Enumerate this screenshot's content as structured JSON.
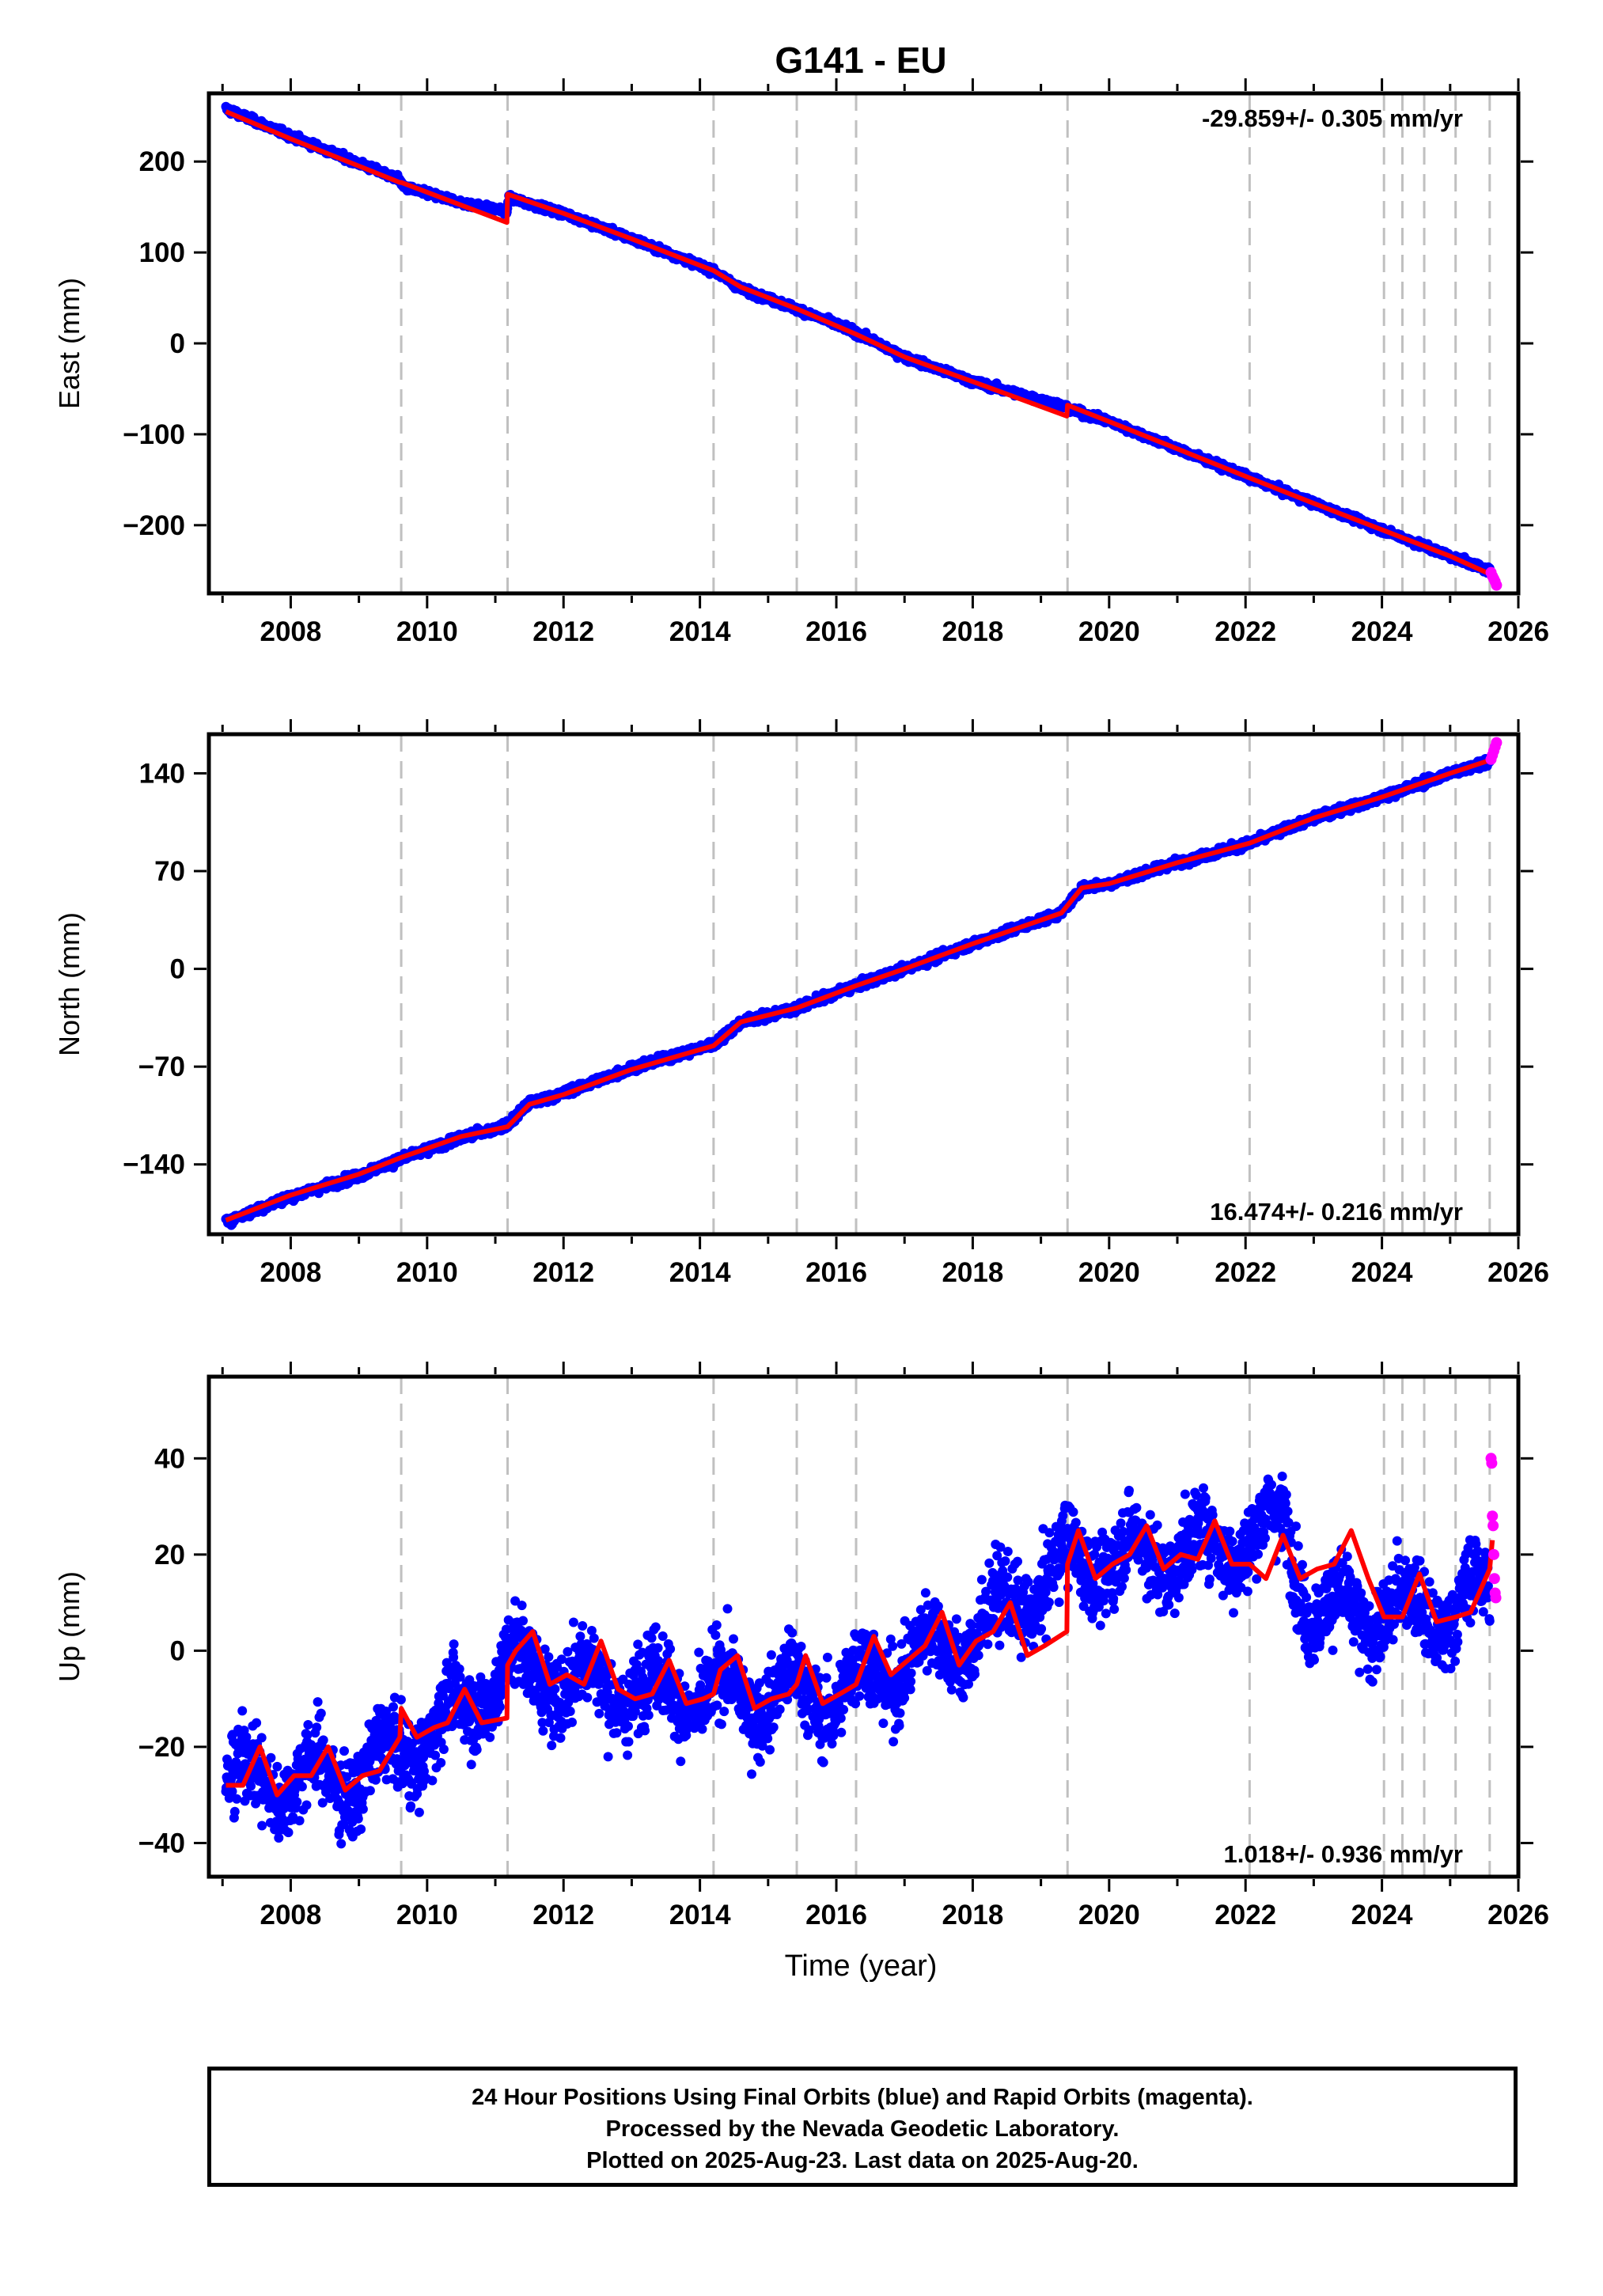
{
  "title": "G141 - EU",
  "xlabel": "Time (year)",
  "footer": {
    "line1": "24 Hour Positions Using Final Orbits (blue) and Rapid Orbits (magenta).",
    "line2": "Processed by the Nevada Geodetic Laboratory.",
    "line3": "Plotted on 2025-Aug-23. Last data on 2025-Aug-20."
  },
  "colors": {
    "final": "#0000ff",
    "rapid": "#ff00ff",
    "model": "#ff0000",
    "steps": "#c0c0c0"
  },
  "chart_data": [
    {
      "type": "scatter",
      "panel": "east",
      "ylabel": "East (mm)",
      "rate_label": "-29.859+/- 0.305 mm/yr",
      "rate_position": "top-right",
      "xlim": [
        2006.8,
        2026.0
      ],
      "ylim": [
        -275,
        275
      ],
      "yticks": [
        -200,
        -100,
        0,
        100,
        200
      ],
      "xticks": [
        2008,
        2010,
        2012,
        2014,
        2016,
        2018,
        2020,
        2022,
        2024,
        2026
      ],
      "step_lines": [
        2009.62,
        2011.18,
        2014.2,
        2015.42,
        2016.29,
        2019.39,
        2022.06,
        2024.03,
        2024.3,
        2024.62,
        2025.08,
        2025.58
      ],
      "model": {
        "x": [
          2007.05,
          2008.0,
          2009.0,
          2009.6,
          2009.62,
          2011.17,
          2011.18,
          2012.0,
          2013.0,
          2014.2,
          2014.6,
          2015.42,
          2016.29,
          2017.0,
          2018.0,
          2019.38,
          2019.39,
          2020.0,
          2021.0,
          2022.06,
          2023.0,
          2024.0,
          2025.0,
          2025.62
        ],
        "y": [
          255,
          225,
          195,
          177,
          177,
          133,
          164,
          143,
          115,
          80,
          62,
          38,
          10,
          -15,
          -42,
          -80,
          -68,
          -86,
          -116,
          -148,
          -176,
          -205,
          -234,
          -255
        ]
      },
      "final_series": {
        "name": "final",
        "x": [
          2007.05,
          2008.0,
          2009.0,
          2009.6,
          2009.65,
          2010.5,
          2011.17,
          2011.2,
          2012.0,
          2013.0,
          2014.2,
          2014.6,
          2015.42,
          2016.29,
          2017.0,
          2018.0,
          2019.38,
          2019.4,
          2020.0,
          2021.0,
          2022.06,
          2023.0,
          2024.0,
          2025.0,
          2025.58
        ],
        "y": [
          258,
          228,
          198,
          180,
          172,
          155,
          145,
          160,
          143,
          115,
          80,
          60,
          38,
          12,
          -15,
          -42,
          -70,
          -72,
          -86,
          -116,
          -148,
          -176,
          -205,
          -234,
          -250
        ]
      },
      "rapid_series": {
        "name": "rapid",
        "x": [
          2025.6,
          2025.62,
          2025.64,
          2025.66,
          2025.68
        ],
        "y": [
          -252,
          -256,
          -259,
          -262,
          -266
        ]
      },
      "noise": 3
    },
    {
      "type": "scatter",
      "panel": "north",
      "ylabel": "North (mm)",
      "rate_label": "16.474+/- 0.216 mm/yr",
      "rate_position": "bottom-right",
      "xlim": [
        2006.8,
        2026.0
      ],
      "ylim": [
        -190,
        168
      ],
      "yticks": [
        -140,
        -70,
        0,
        70,
        140
      ],
      "xticks": [
        2008,
        2010,
        2012,
        2014,
        2016,
        2018,
        2020,
        2022,
        2024,
        2026
      ],
      "step_lines": [
        2009.62,
        2011.18,
        2014.2,
        2015.42,
        2016.29,
        2019.39,
        2022.06,
        2024.03,
        2024.3,
        2024.62,
        2025.08,
        2025.58
      ],
      "model": {
        "x": [
          2007.05,
          2008.0,
          2009.0,
          2009.62,
          2010.5,
          2011.18,
          2011.5,
          2012.0,
          2013.0,
          2014.2,
          2014.6,
          2015.42,
          2016.29,
          2017.0,
          2018.0,
          2019.3,
          2019.6,
          2020.0,
          2021.0,
          2022.06,
          2023.0,
          2024.0,
          2025.0,
          2025.62
        ],
        "y": [
          -180,
          -162,
          -147,
          -135,
          -120,
          -113,
          -97,
          -90,
          -72,
          -55,
          -38,
          -28,
          -12,
          0,
          18,
          40,
          58,
          61,
          76,
          90,
          108,
          123,
          140,
          150
        ]
      },
      "final_series": {
        "name": "final",
        "x": [
          2007.05,
          2008.0,
          2009.0,
          2009.62,
          2010.5,
          2011.18,
          2011.5,
          2012.0,
          2013.0,
          2014.2,
          2014.6,
          2015.42,
          2016.29,
          2017.0,
          2018.0,
          2019.3,
          2019.6,
          2020.0,
          2021.0,
          2022.06,
          2023.0,
          2024.0,
          2025.0,
          2025.58
        ],
        "y": [
          -181,
          -163,
          -148,
          -136,
          -121,
          -112,
          -96,
          -89,
          -71,
          -54,
          -38,
          -28,
          -12,
          0,
          18,
          40,
          58,
          61,
          76,
          90,
          108,
          123,
          140,
          149
        ]
      },
      "rapid_series": {
        "name": "rapid",
        "x": [
          2025.6,
          2025.62,
          2025.64,
          2025.66,
          2025.68
        ],
        "y": [
          150,
          153,
          156,
          159,
          162
        ]
      },
      "noise": 2.5
    },
    {
      "type": "scatter",
      "panel": "up",
      "ylabel": "Up (mm)",
      "rate_label": "1.018+/- 0.936 mm/yr",
      "rate_position": "bottom-right",
      "xlim": [
        2006.8,
        2026.0
      ],
      "ylim": [
        -47,
        57
      ],
      "yticks": [
        -40,
        -20,
        0,
        20,
        40
      ],
      "xticks": [
        2008,
        2010,
        2012,
        2014,
        2016,
        2018,
        2020,
        2022,
        2024,
        2026
      ],
      "step_lines": [
        2009.62,
        2011.18,
        2014.2,
        2015.42,
        2016.29,
        2019.39,
        2022.06,
        2024.03,
        2024.3,
        2024.62,
        2025.08,
        2025.58
      ],
      "model": {
        "x": [
          2007.05,
          2007.3,
          2007.55,
          2007.8,
          2008.05,
          2008.3,
          2008.55,
          2008.8,
          2009.05,
          2009.3,
          2009.6,
          2009.62,
          2009.85,
          2010.1,
          2010.3,
          2010.55,
          2010.8,
          2011.17,
          2011.18,
          2011.3,
          2011.55,
          2011.8,
          2012.05,
          2012.3,
          2012.55,
          2012.8,
          2013.05,
          2013.3,
          2013.55,
          2013.8,
          2014.05,
          2014.2,
          2014.3,
          2014.55,
          2014.8,
          2015.05,
          2015.3,
          2015.42,
          2015.55,
          2015.8,
          2016.05,
          2016.29,
          2016.55,
          2016.8,
          2017.05,
          2017.3,
          2017.55,
          2017.8,
          2018.05,
          2018.3,
          2018.55,
          2018.8,
          2019.05,
          2019.38,
          2019.39,
          2019.55,
          2019.8,
          2020.05,
          2020.3,
          2020.55,
          2020.8,
          2021.05,
          2021.3,
          2021.55,
          2021.8,
          2022.06,
          2022.3,
          2022.55,
          2022.8,
          2023.05,
          2023.3,
          2023.55,
          2023.8,
          2024.03,
          2024.3,
          2024.55,
          2024.8,
          2025.08,
          2025.3,
          2025.58,
          2025.62
        ],
        "y": [
          -28,
          -28,
          -20,
          -30,
          -26,
          -26,
          -20,
          -29,
          -26,
          -25,
          -18,
          -12,
          -18,
          -16,
          -15,
          -8,
          -15,
          -14,
          -3,
          0,
          4,
          -7,
          -5,
          -7,
          2,
          -8,
          -10,
          -9,
          -2,
          -11,
          -10,
          -9,
          -4,
          -1,
          -12,
          -10,
          -9,
          -7,
          -1,
          -11,
          -9,
          -7,
          3,
          -5,
          -2,
          1,
          8,
          -3,
          2,
          4,
          10,
          -1,
          1,
          4,
          18,
          25,
          15,
          18,
          20,
          26,
          17,
          20,
          19,
          27,
          18,
          18,
          15,
          24,
          15,
          17,
          18,
          25,
          15,
          7,
          7,
          16,
          6,
          7,
          8,
          17,
          23
        ],
        "note": "seasonal model"
      },
      "final_series": {
        "name": "final",
        "x": [
          2007.05,
          2008.0,
          2009.0,
          2009.6,
          2010.5,
          2011.18,
          2012.0,
          2013.0,
          2014.2,
          2015.0,
          2016.0,
          2017.0,
          2018.0,
          2019.39,
          2020.0,
          2021.0,
          2022.0,
          2022.6,
          2023.0,
          2024.0,
          2025.0,
          2025.58
        ],
        "y": [
          -27,
          -27,
          -26,
          -21,
          -13,
          -3,
          -6,
          -8,
          -9,
          -9,
          -9,
          -2,
          3,
          18,
          19,
          20,
          23,
          26,
          7,
          8,
          8,
          12
        ]
      },
      "rapid_series": {
        "name": "rapid",
        "x": [
          2025.6,
          2025.61,
          2025.62,
          2025.63,
          2025.64,
          2025.65,
          2025.66,
          2025.67
        ],
        "y": [
          40,
          39,
          28,
          26,
          20,
          15,
          12,
          11
        ]
      },
      "noise": 7
    }
  ]
}
